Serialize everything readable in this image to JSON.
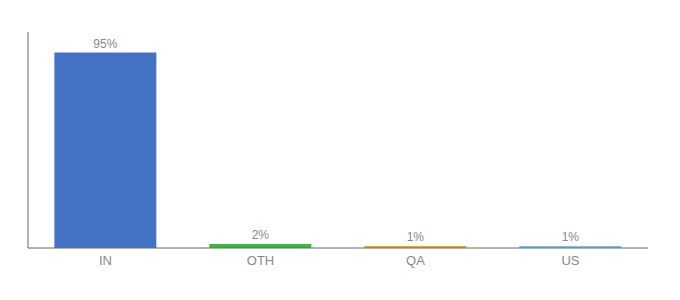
{
  "chart_data": {
    "type": "bar",
    "categories": [
      "IN",
      "OTH",
      "QA",
      "US"
    ],
    "values": [
      95,
      2,
      1,
      1
    ],
    "value_labels": [
      "95%",
      "2%",
      "1%",
      "1%"
    ],
    "colors": [
      "#4472c4",
      "#33bb33",
      "#f4a21f",
      "#74c0f0"
    ],
    "ylim": [
      0,
      105
    ],
    "grid": false,
    "data_labels": true,
    "tick_labels": "x"
  }
}
